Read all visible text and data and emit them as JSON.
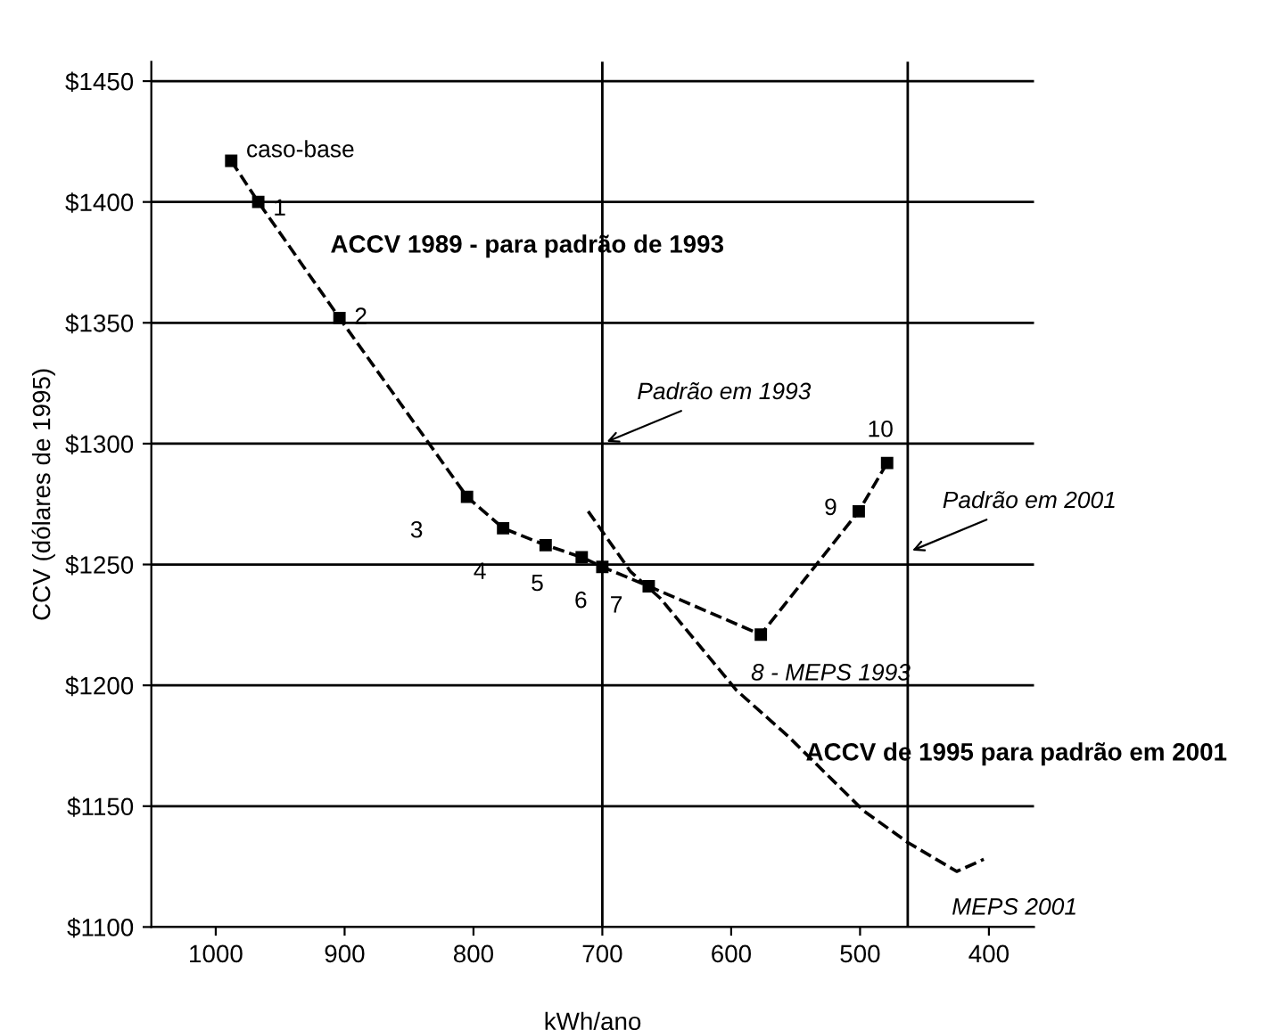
{
  "chart_data": {
    "type": "line",
    "xlabel": "kWh/ano",
    "ylabel": "CCV (dólares de 1995)",
    "xlim": [
      1050,
      365
    ],
    "xticks": [
      1000,
      900,
      800,
      700,
      600,
      500,
      400
    ],
    "ylim": [
      1100,
      1458
    ],
    "yticks": [
      {
        "value": 1100,
        "label": "$1100"
      },
      {
        "value": 1150,
        "label": "$1150"
      },
      {
        "value": 1200,
        "label": "$1200"
      },
      {
        "value": 1250,
        "label": "$1250"
      },
      {
        "value": 1300,
        "label": "$1300"
      },
      {
        "value": 1350,
        "label": "$1350"
      },
      {
        "value": 1400,
        "label": "$1400"
      },
      {
        "value": 1450,
        "label": "$1450"
      }
    ],
    "grid": "y",
    "legend": false,
    "line_style": "dashed",
    "series": [
      {
        "color": "#000000",
        "marker": "square",
        "x": [
          988,
          967,
          904,
          805,
          777,
          744,
          716,
          700,
          664,
          577,
          501,
          479
        ],
        "values": [
          1417,
          1400,
          1352,
          1278,
          1265,
          1258,
          1253,
          1249,
          1241,
          1221,
          1272,
          1292
        ]
      },
      {
        "color": "#000000",
        "marker": "none",
        "x": [
          711,
          678,
          655,
          596,
          556,
          497,
          463,
          425,
          404
        ],
        "values": [
          1272,
          1247,
          1236,
          1198,
          1179,
          1148,
          1135,
          1123,
          1128
        ]
      }
    ],
    "ref_lines": [
      {
        "axis": "x",
        "value": 700,
        "color": "#000000"
      },
      {
        "axis": "x",
        "value": 463,
        "color": "#000000"
      }
    ],
    "annotations": [
      {
        "text": "caso-base",
        "x": 988,
        "y": 1417
      },
      {
        "text": "1",
        "x": 967,
        "y": 1400
      },
      {
        "text": "2",
        "x": 904,
        "y": 1352
      },
      {
        "text": "3",
        "x": 805,
        "y": 1278
      },
      {
        "text": "4",
        "x": 777,
        "y": 1265
      },
      {
        "text": "5",
        "x": 744,
        "y": 1258
      },
      {
        "text": "6",
        "x": 716,
        "y": 1253
      },
      {
        "text": "7",
        "x": 700,
        "y": 1249
      },
      {
        "text": "8 - MEPS 1993",
        "x": 577,
        "y": 1221
      },
      {
        "text": "9",
        "x": 501,
        "y": 1272
      },
      {
        "text": "10",
        "x": 479,
        "y": 1292
      },
      {
        "text": "MEPS 2001",
        "x": 425,
        "y": 1123
      },
      {
        "text": "Padrão em 1993",
        "x": 700,
        "y": 1300
      },
      {
        "text": "Padrão em 2001",
        "x": 463,
        "y": 1255
      },
      "ACCV 1989 - para padrão de 1993",
      "ACCV de 1995 para padrão em 2001"
    ]
  }
}
